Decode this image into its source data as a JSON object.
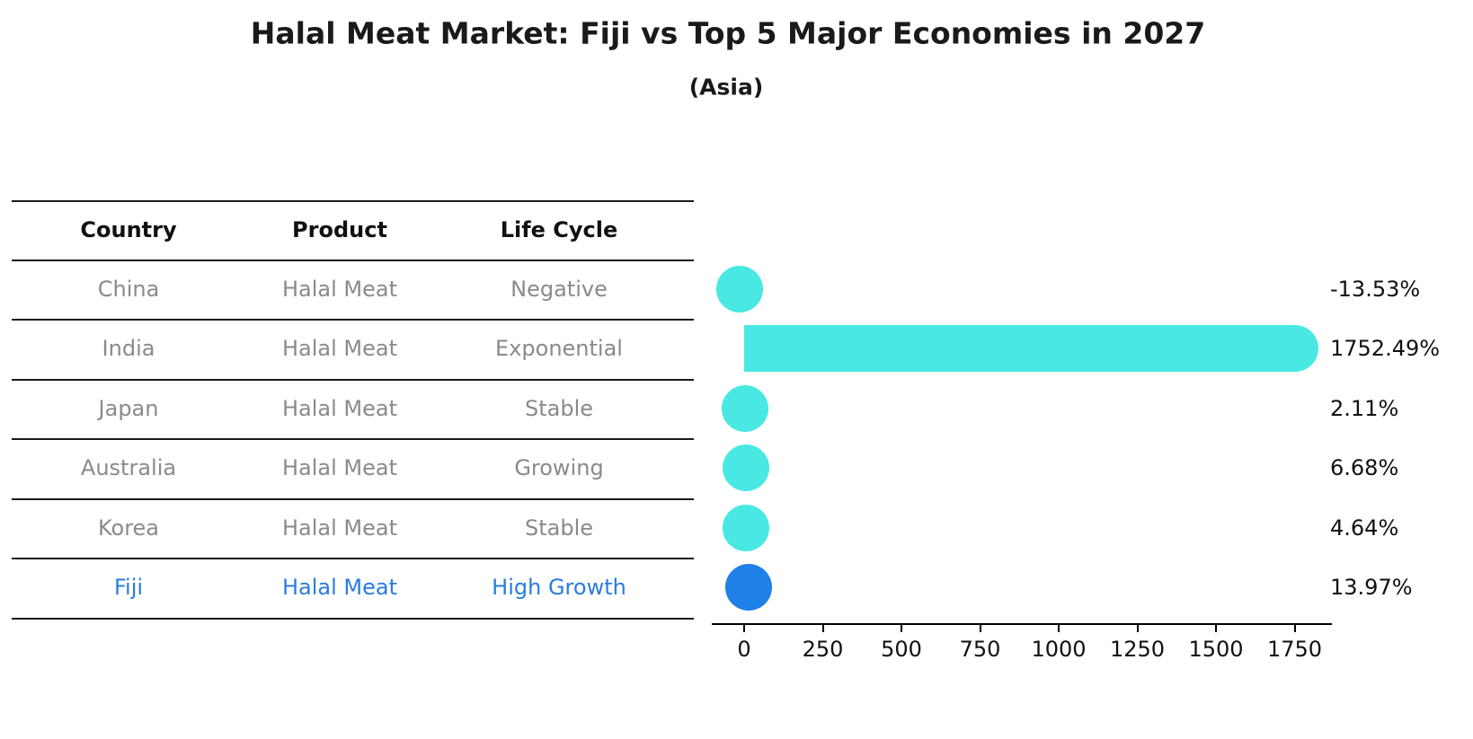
{
  "title": "Halal Meat Market: Fiji vs Top 5 Major Economies in 2027",
  "subtitle": "(Asia)",
  "table": {
    "headers": {
      "country": "Country",
      "product": "Product",
      "life_cycle": "Life Cycle"
    },
    "rows": [
      {
        "country": "China",
        "product": "Halal Meat",
        "life_cycle": "Negative",
        "highlight": false
      },
      {
        "country": "India",
        "product": "Halal Meat",
        "life_cycle": "Exponential",
        "highlight": false
      },
      {
        "country": "Japan",
        "product": "Halal Meat",
        "life_cycle": "Stable",
        "highlight": false
      },
      {
        "country": "Australia",
        "product": "Halal Meat",
        "life_cycle": "Growing",
        "highlight": false
      },
      {
        "country": "Korea",
        "product": "Halal Meat",
        "life_cycle": "Stable",
        "highlight": false
      },
      {
        "country": "Fiji",
        "product": "Halal Meat",
        "life_cycle": "High Growth",
        "highlight": true
      }
    ]
  },
  "chart_data": {
    "type": "bar",
    "orientation": "horizontal",
    "categories": [
      "China",
      "India",
      "Japan",
      "Australia",
      "Korea",
      "Fiji"
    ],
    "values": [
      -13.53,
      1752.49,
      2.11,
      6.68,
      4.64,
      13.97
    ],
    "value_labels": [
      "-13.53%",
      "1752.49%",
      "2.11%",
      "6.68%",
      "4.64%",
      "13.97%"
    ],
    "unit": "%",
    "x_ticks": [
      0,
      250,
      500,
      750,
      1000,
      1250,
      1500,
      1750
    ],
    "xlim": [
      -105,
      1870
    ],
    "grid": false,
    "legend": "none",
    "value_label_position": "right",
    "highlight_index": 5
  },
  "colors": {
    "bar": "#49E8E3",
    "highlight_bar": "#1F80E8",
    "table_text_default": "#8a8a8a",
    "table_text_highlight": "#2A7CDE",
    "axis": "#000000",
    "divider": "#1a1a1a"
  }
}
